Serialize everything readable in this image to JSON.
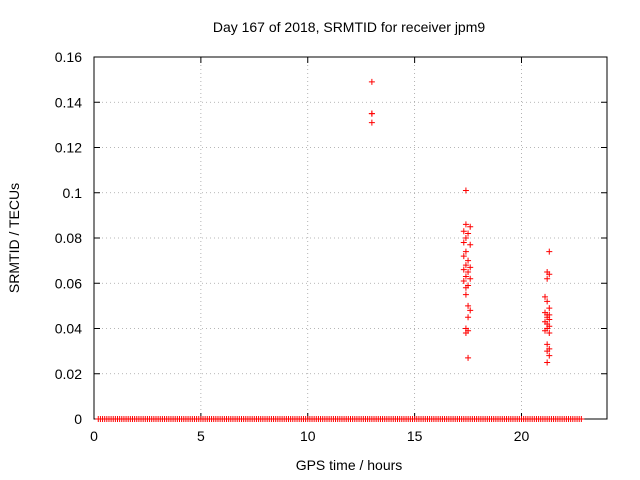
{
  "chart_data": {
    "type": "scatter",
    "title": "Day 167 of 2018, SRMTID for receiver jpm9",
    "xlabel": "GPS time / hours",
    "ylabel": "SRMTID / TECUs",
    "xlim": [
      0,
      24
    ],
    "ylim": [
      0,
      0.16
    ],
    "x_ticks": [
      0,
      5,
      10,
      15,
      20
    ],
    "x_tick_labels": [
      "0",
      "5",
      "10",
      "15",
      "20"
    ],
    "y_ticks": [
      0,
      0.02,
      0.04,
      0.06,
      0.08,
      0.1,
      0.12,
      0.14,
      0.16
    ],
    "y_tick_labels": [
      "0",
      "0.02",
      "0.04",
      "0.06",
      "0.08",
      "0.1",
      "0.12",
      "0.14",
      "0.16"
    ],
    "grid": true,
    "marker": "+",
    "marker_color": "#ff0000",
    "series": [
      {
        "name": "SRMTID",
        "zero_band": {
          "y": 0,
          "x_start": 0.2,
          "x_end": 22.8,
          "step": 0.1
        },
        "x": [
          13.0,
          13.0,
          13.0,
          13.0,
          17.4,
          17.4,
          17.3,
          17.4,
          17.6,
          17.5,
          17.3,
          17.6,
          17.4,
          17.3,
          17.5,
          17.4,
          17.6,
          17.3,
          17.5,
          17.4,
          17.6,
          17.3,
          17.5,
          17.4,
          17.4,
          17.5,
          17.6,
          17.5,
          17.4,
          17.5,
          17.4,
          17.5,
          21.3,
          21.2,
          21.3,
          21.2,
          21.1,
          21.2,
          21.3,
          21.1,
          21.2,
          21.3,
          21.2,
          21.3,
          21.1,
          21.2,
          21.3,
          21.2,
          21.1,
          21.3,
          21.2,
          21.3,
          21.2,
          21.3,
          21.2
        ],
        "y": [
          0.149,
          0.135,
          0.135,
          0.131,
          0.101,
          0.086,
          0.083,
          0.08,
          0.085,
          0.082,
          0.078,
          0.077,
          0.074,
          0.072,
          0.07,
          0.068,
          0.067,
          0.066,
          0.065,
          0.063,
          0.062,
          0.061,
          0.059,
          0.058,
          0.055,
          0.05,
          0.048,
          0.045,
          0.04,
          0.039,
          0.038,
          0.027,
          0.074,
          0.065,
          0.064,
          0.062,
          0.054,
          0.052,
          0.049,
          0.047,
          0.046,
          0.046,
          0.045,
          0.044,
          0.043,
          0.042,
          0.041,
          0.04,
          0.039,
          0.038,
          0.033,
          0.031,
          0.03,
          0.028,
          0.025
        ]
      }
    ]
  }
}
